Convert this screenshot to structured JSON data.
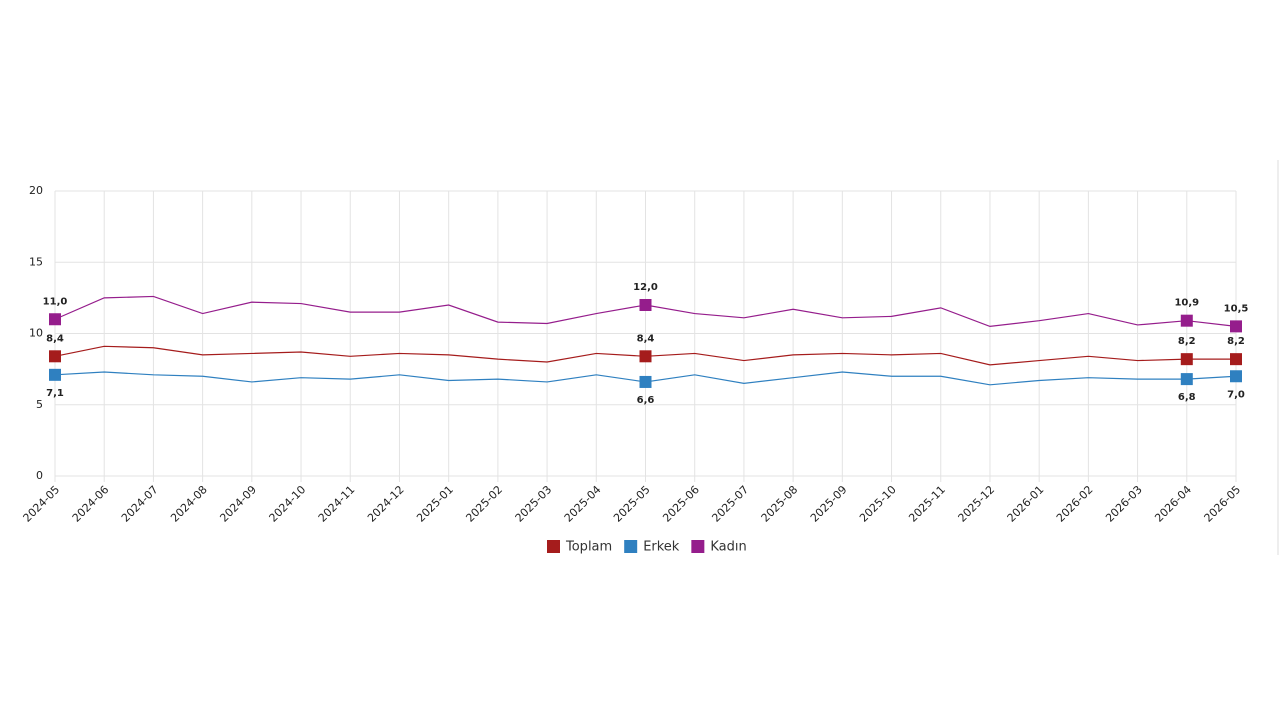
{
  "chart_data": {
    "type": "line",
    "categories": [
      "2024-05",
      "2024-06",
      "2024-07",
      "2024-08",
      "2024-09",
      "2024-10",
      "2024-11",
      "2024-12",
      "2025-01",
      "2025-02",
      "2025-03",
      "2025-04",
      "2025-05",
      "2025-06",
      "2025-07",
      "2025-08",
      "2025-09",
      "2025-10",
      "2025-11",
      "2025-12",
      "2026-01",
      "2026-02",
      "2026-03",
      "2026-04",
      "2026-05"
    ],
    "series": [
      {
        "name": "Toplam",
        "color": "#a51c1c",
        "values": [
          8.4,
          9.1,
          9.0,
          8.5,
          8.6,
          8.7,
          8.4,
          8.6,
          8.5,
          8.2,
          8.0,
          8.6,
          8.4,
          8.6,
          8.1,
          8.5,
          8.6,
          8.5,
          8.6,
          7.8,
          8.1,
          8.4,
          8.1,
          8.2,
          8.2
        ],
        "value_labels": [
          "8,4",
          null,
          null,
          null,
          null,
          null,
          null,
          null,
          null,
          null,
          null,
          null,
          "8,4",
          null,
          null,
          null,
          null,
          null,
          null,
          null,
          null,
          null,
          null,
          "8,2",
          "8,2"
        ]
      },
      {
        "name": "Erkek",
        "color": "#2f80c0",
        "values": [
          7.1,
          7.3,
          7.1,
          7.0,
          6.6,
          6.9,
          6.8,
          7.1,
          6.7,
          6.8,
          6.6,
          7.1,
          6.6,
          7.1,
          6.5,
          6.9,
          7.3,
          7.0,
          7.0,
          6.4,
          6.7,
          6.9,
          6.8,
          6.8,
          7.0
        ],
        "value_labels": [
          "7,1",
          null,
          null,
          null,
          null,
          null,
          null,
          null,
          null,
          null,
          null,
          null,
          "6,6",
          null,
          null,
          null,
          null,
          null,
          null,
          null,
          null,
          null,
          null,
          "6,8",
          "7,0"
        ]
      },
      {
        "name": "Kadın",
        "color": "#951d8c",
        "values": [
          11.0,
          12.5,
          12.6,
          11.4,
          12.2,
          12.1,
          11.5,
          11.5,
          12.0,
          10.8,
          10.7,
          11.4,
          12.0,
          11.4,
          11.1,
          11.7,
          11.1,
          11.2,
          11.8,
          10.5,
          10.9,
          11.4,
          10.6,
          10.9,
          10.5
        ],
        "value_labels": [
          "11,0",
          null,
          null,
          null,
          null,
          null,
          null,
          null,
          null,
          null,
          null,
          null,
          "12,0",
          null,
          null,
          null,
          null,
          null,
          null,
          null,
          null,
          null,
          null,
          "10,9",
          "10,5"
        ]
      }
    ],
    "ylim": [
      0,
      20
    ],
    "yticks": [
      0,
      5,
      10,
      15,
      20
    ],
    "grid": true,
    "legend": "bottom"
  }
}
